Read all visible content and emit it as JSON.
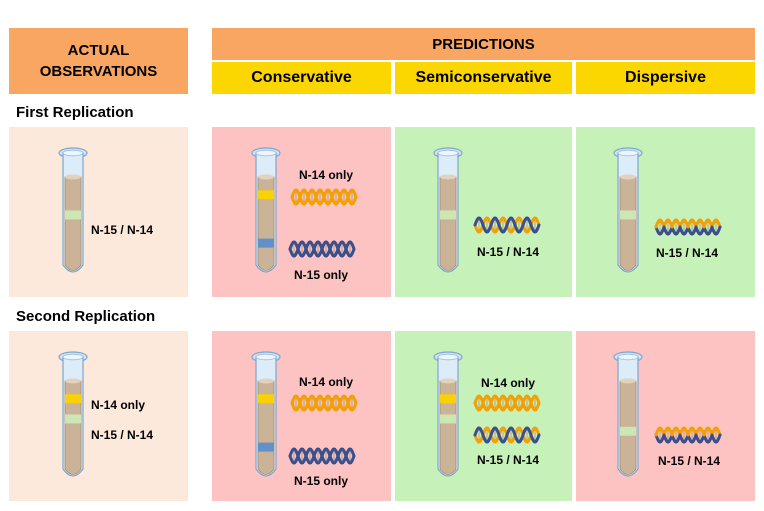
{
  "headers": {
    "actual_line1": "ACTUAL",
    "actual_line2": "OBSERVATIONS",
    "predictions": "PREDICTIONS",
    "models": [
      "Conservative",
      "Semiconservative",
      "Dispersive"
    ]
  },
  "rows": [
    {
      "title": "First Replication",
      "actual": {
        "labels": [
          "N-15 / N-14"
        ]
      },
      "conservative": {
        "top": "N-14 only",
        "bottom": "N-15 only"
      },
      "semiconservative": {
        "label": "N-15 / N-14"
      },
      "dispersive": {
        "label": "N-15 / N-14"
      }
    },
    {
      "title": "Second Replication",
      "actual": {
        "labels": [
          "N-14 only",
          "N-15 / N-14"
        ]
      },
      "conservative": {
        "top": "N-14 only",
        "bottom": "N-15 only"
      },
      "semiconservative": {
        "top": "N-14 only",
        "bottom": "N-15 / N-14"
      },
      "dispersive": {
        "label": "N-15 / N-14"
      }
    }
  ],
  "colors": {
    "header_orange": "#f9a662",
    "header_yellow": "#fcd600",
    "actual_bg": "#fde9dc",
    "mismatch_bg": "#fdc2c2",
    "match_bg": "#c6f2b9",
    "band_n14": "#fcd200",
    "band_hybrid": "#cde8b5",
    "band_n15": "#5b8fc9",
    "dna_light": "#f5a000",
    "dna_heavy": "#3b4f8c"
  }
}
